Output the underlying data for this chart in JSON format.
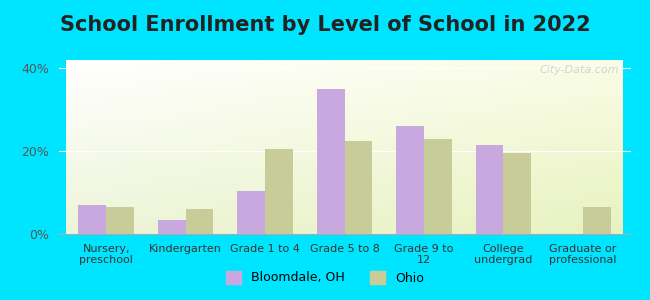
{
  "title": "School Enrollment by Level of School in 2022",
  "categories": [
    "Nursery,\npreschool",
    "Kindergarten",
    "Grade 1 to 4",
    "Grade 5 to 8",
    "Grade 9 to\n12",
    "College\nundergrad",
    "Graduate or\nprofessional"
  ],
  "bloomdale": [
    7.0,
    3.5,
    10.5,
    35.0,
    26.0,
    21.5,
    0.0
  ],
  "ohio": [
    6.5,
    6.0,
    20.5,
    22.5,
    23.0,
    19.5,
    6.5
  ],
  "bloomdale_color": "#c9a8e0",
  "ohio_color": "#c8cc99",
  "background_outer": "#00e5ff",
  "ylim": [
    0,
    42
  ],
  "yticks": [
    0,
    20,
    40
  ],
  "ytick_labels": [
    "0%",
    "20%",
    "40%"
  ],
  "legend_bloomdale": "Bloomdale, OH",
  "legend_ohio": "Ohio",
  "title_fontsize": 15,
  "watermark": "City-Data.com"
}
